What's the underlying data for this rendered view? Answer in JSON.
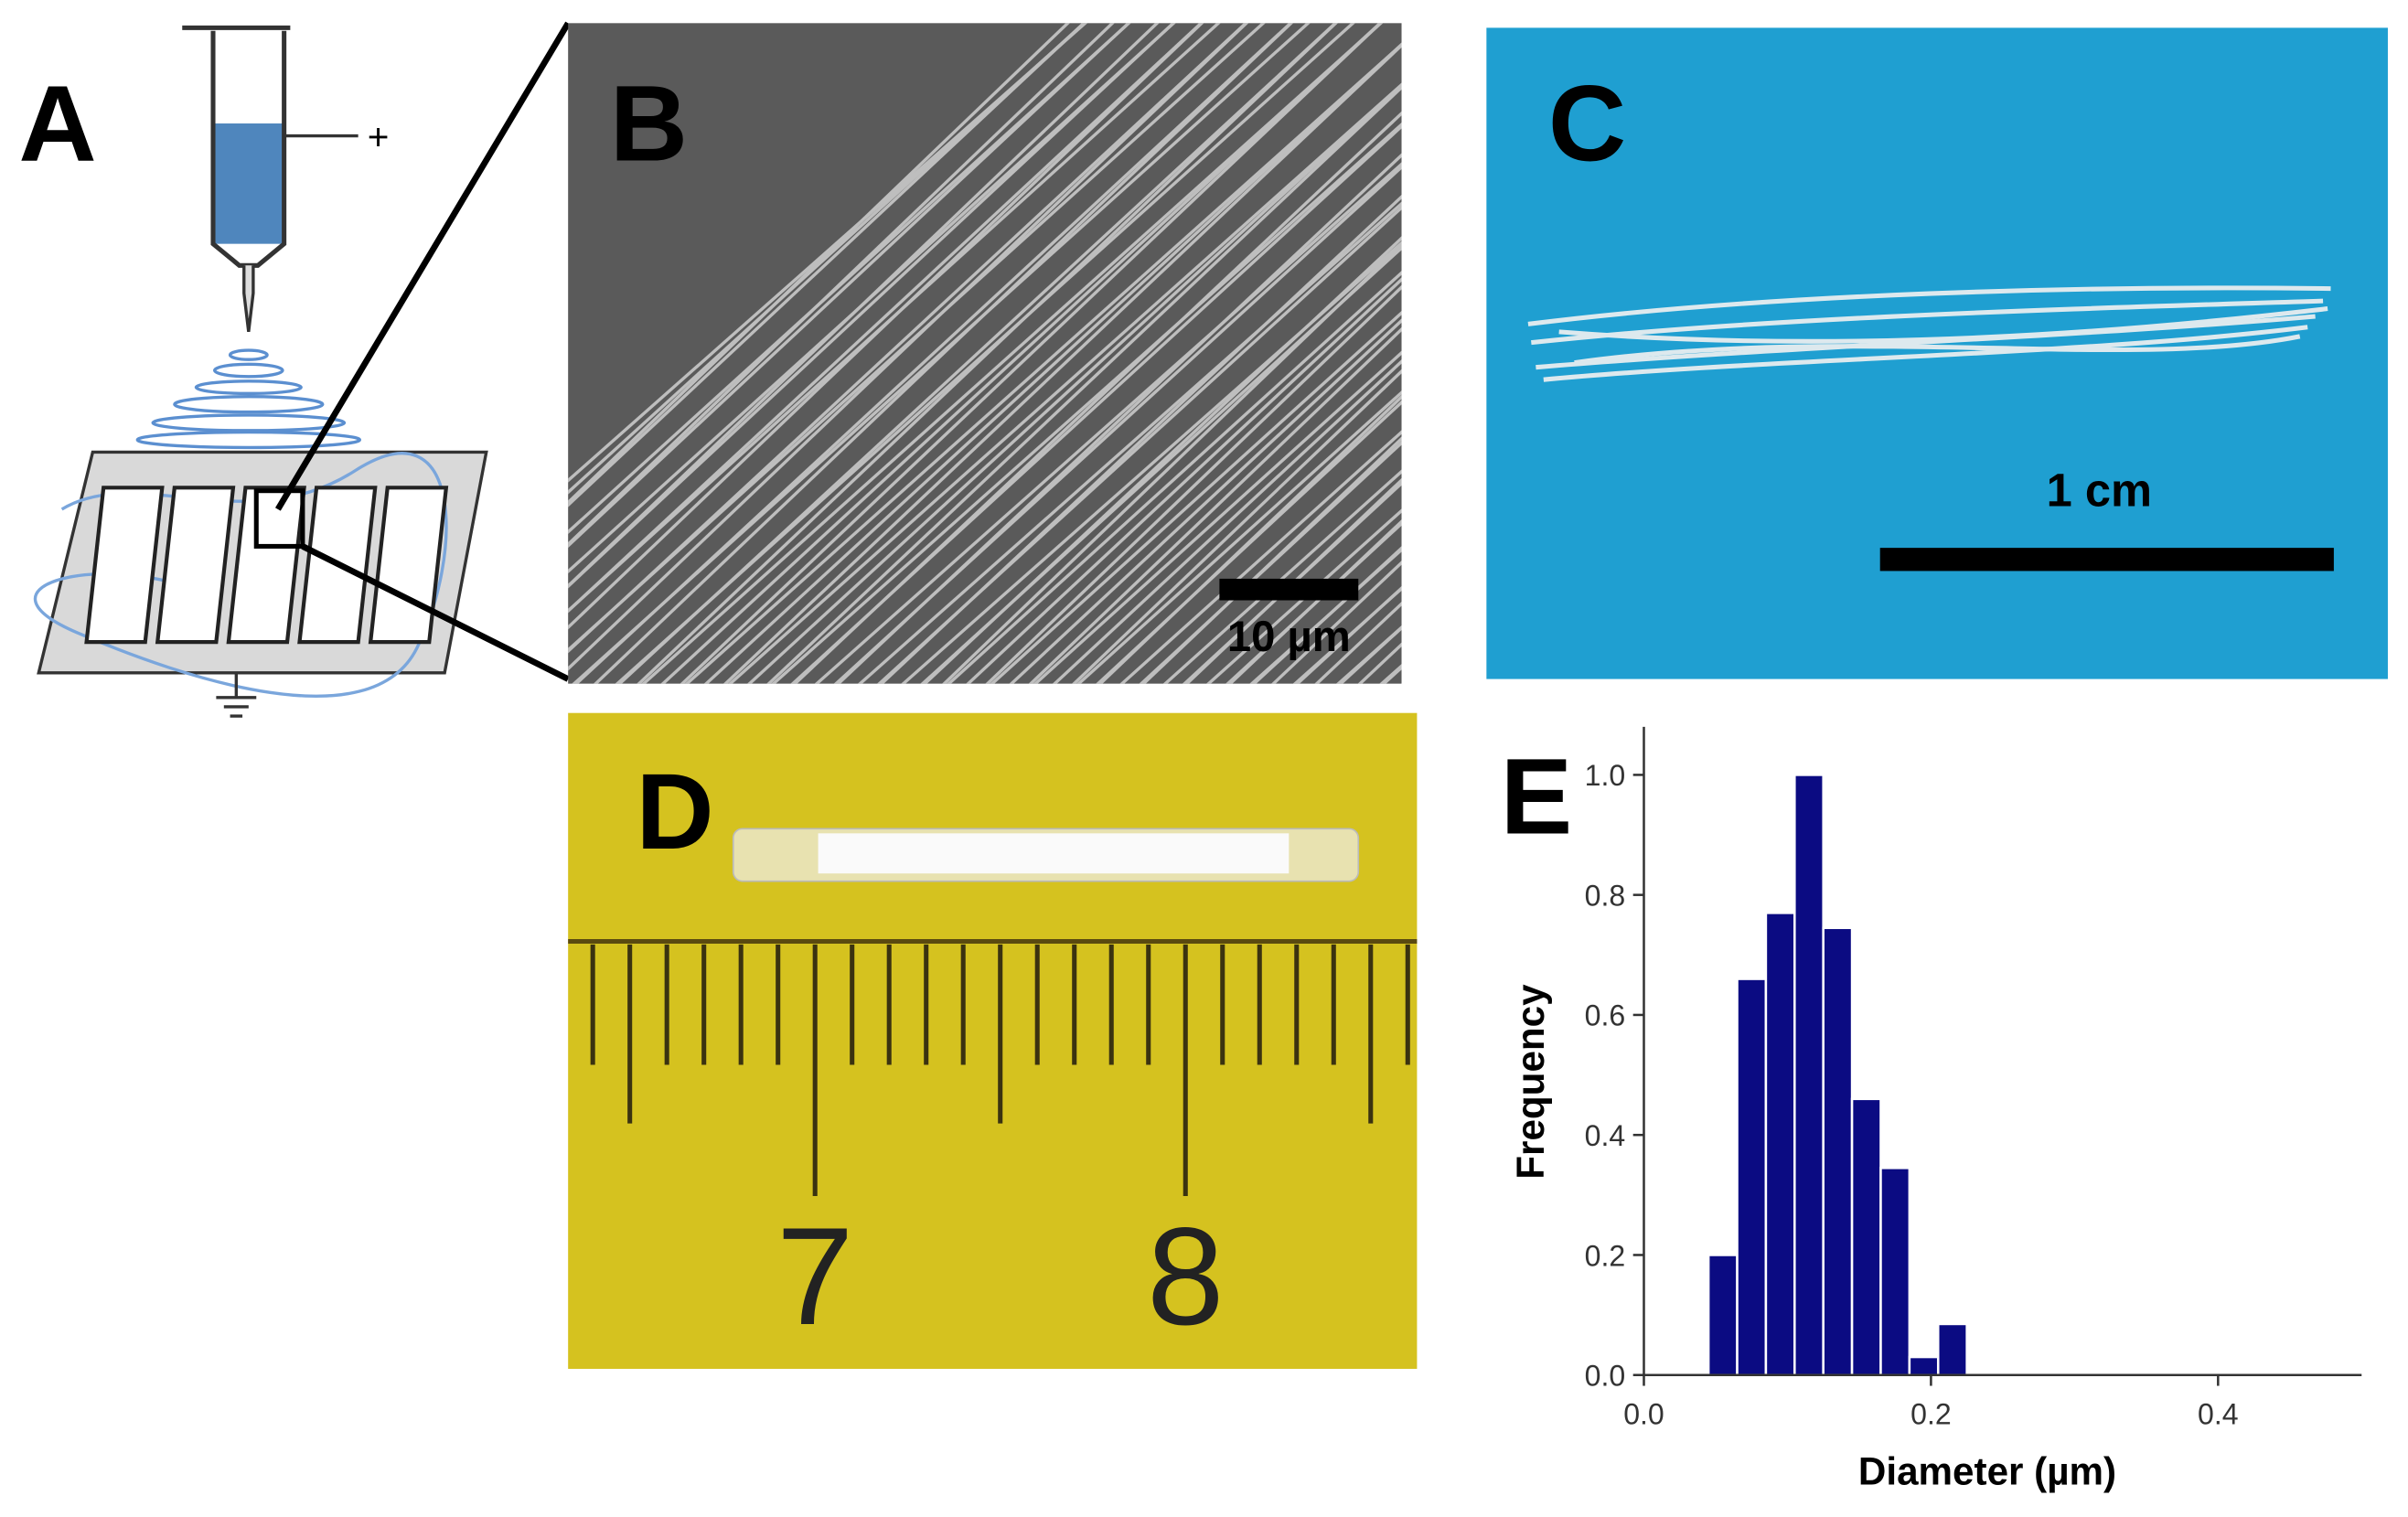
{
  "panels": {
    "a": {
      "label": "A",
      "voltage": "+"
    },
    "b": {
      "label": "B",
      "scale_bar": "10 µm"
    },
    "c": {
      "label": "C",
      "scale_bar": "1 cm"
    },
    "d": {
      "label": "D",
      "ruler_labels": [
        "7",
        "8"
      ]
    },
    "e": {
      "label": "E"
    }
  },
  "chart_data": {
    "type": "histogram",
    "xlabel": "Diameter (µm)",
    "ylabel": "Frequency",
    "bins": [
      0.045,
      0.065,
      0.085,
      0.105,
      0.125,
      0.145,
      0.165,
      0.185,
      0.205,
      0.225
    ],
    "values": [
      0.2,
      0.66,
      0.77,
      1.0,
      0.745,
      0.46,
      0.345,
      0.03,
      0.085
    ],
    "color": "#0b0b82",
    "xlim": [
      0,
      0.5
    ],
    "xticks": [
      {
        "value": 0,
        "label": "0.0"
      },
      0.2,
      0.4
    ],
    "ylim": [
      0,
      1.08
    ],
    "yticks": [
      {
        "value": 0,
        "label": "0.0"
      },
      0.2,
      0.4,
      0.6,
      0.8,
      {
        "value": 1,
        "label": "1.0"
      }
    ]
  }
}
